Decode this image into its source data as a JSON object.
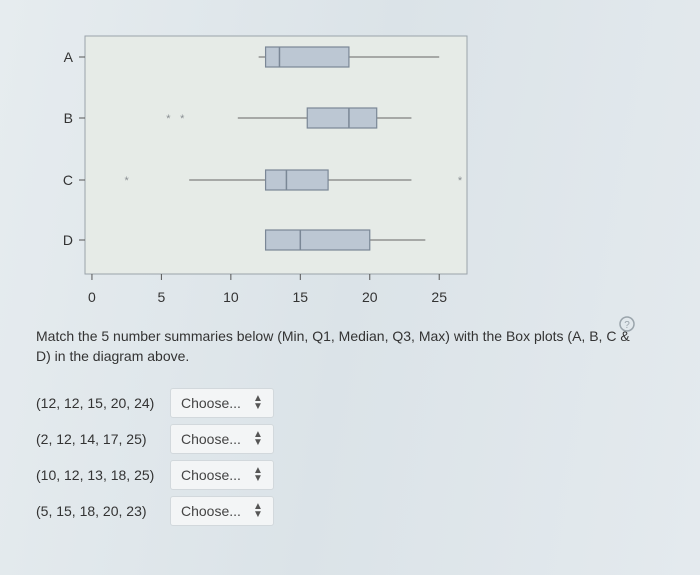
{
  "chart_data": {
    "type": "boxplot",
    "categories": [
      "A",
      "B",
      "C",
      "D"
    ],
    "series": [
      {
        "label": "A",
        "min": 12,
        "q1": 12.5,
        "median": 13.5,
        "q3": 18.5,
        "max": 25,
        "outliers": []
      },
      {
        "label": "B",
        "min": 10.5,
        "q1": 15.5,
        "median": 18.5,
        "q3": 20.5,
        "max": 23,
        "outliers": [
          5.5,
          6.5
        ]
      },
      {
        "label": "C",
        "min": 7,
        "q1": 12.5,
        "median": 14,
        "q3": 17,
        "max": 23,
        "outliers": [
          2.5,
          26.5
        ]
      },
      {
        "label": "D",
        "min": 12.5,
        "q1": 12.5,
        "median": 15,
        "q3": 20,
        "max": 24,
        "outliers": []
      }
    ],
    "x_ticks": [
      "0",
      "5",
      "10",
      "15",
      "20",
      "25"
    ],
    "xlim": [
      -0.5,
      27
    ],
    "grid": false
  },
  "question": {
    "prompt": "Match the 5 number summaries below (Min, Q1, Median, Q3, Max) with the Box plots (A, B, C & D) in the diagram above."
  },
  "matches": [
    {
      "summary": "(12, 12, 15, 20, 24)",
      "selected": "Choose..."
    },
    {
      "summary": "(2, 12, 14, 17, 25)",
      "selected": "Choose..."
    },
    {
      "summary": "(10, 12, 13, 18, 25)",
      "selected": "Choose..."
    },
    {
      "summary": "(5, 15, 18, 20, 23)",
      "selected": "Choose..."
    }
  ],
  "icons": {
    "dropdown": "up-down-arrow-icon",
    "help": "help-icon"
  },
  "colors": {
    "box_fill": "#bcc7d3",
    "box_stroke": "#7a8796",
    "plot_bg": "#e4e9e6"
  }
}
